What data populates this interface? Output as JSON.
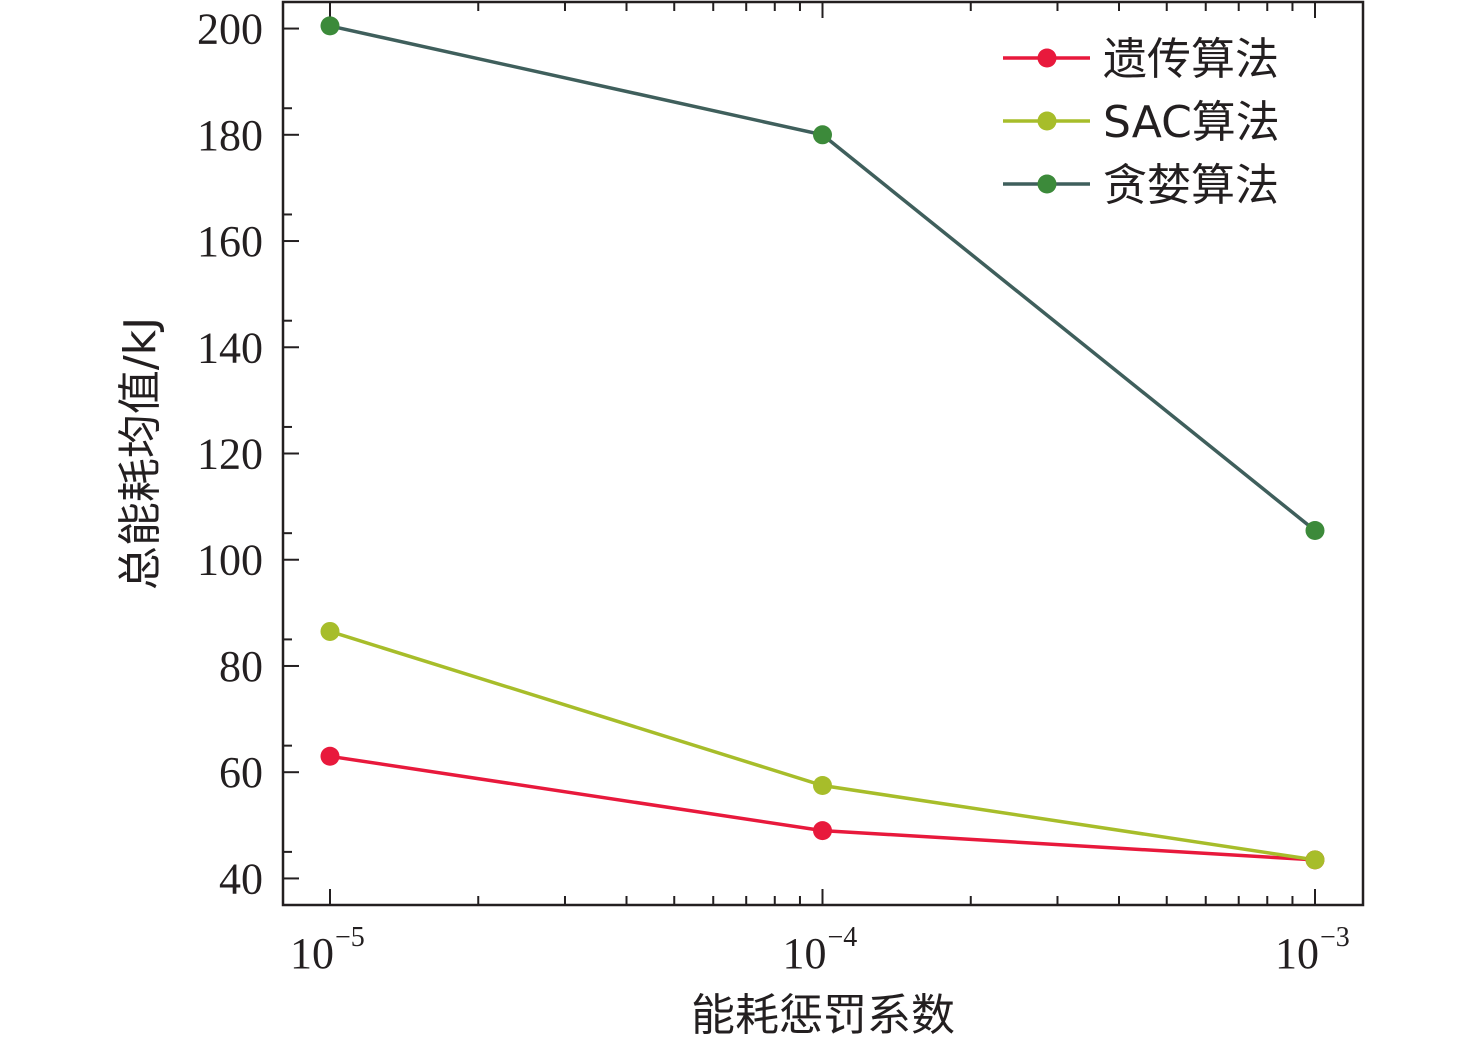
{
  "chart_data": {
    "type": "line",
    "title": "",
    "xlabel": "能耗惩罚系数",
    "ylabel": "总能耗均值/kJ",
    "x_scale": "log",
    "x": [
      1e-05,
      0.0001,
      0.001
    ],
    "x_tick_labels": [
      {
        "base": "10",
        "exp": "−5"
      },
      {
        "base": "10",
        "exp": "−4"
      },
      {
        "base": "10",
        "exp": "−3"
      }
    ],
    "ylim": [
      35,
      205
    ],
    "y_ticks": [
      40,
      60,
      80,
      100,
      120,
      140,
      160,
      180,
      200
    ],
    "grid": false,
    "legend_position": "top-right",
    "series": [
      {
        "name": "遗传算法",
        "color": "#e8193c",
        "values": [
          63,
          49,
          43.5
        ]
      },
      {
        "name": "SAC算法",
        "color": "#a7bd2a",
        "values": [
          86.5,
          57.5,
          43.5
        ]
      },
      {
        "name": "贪婪算法",
        "color": "#3c8a3a",
        "line_color": "#3f5f5c",
        "values": [
          200.5,
          180,
          105.5
        ]
      }
    ]
  }
}
